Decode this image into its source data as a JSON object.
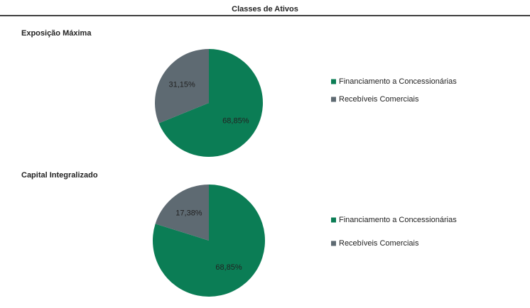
{
  "title": "Classes de Ativos",
  "chart_data": [
    {
      "type": "pie",
      "title": "Exposição Máxima",
      "categories": [
        "Financiamento a Concessionárias",
        "Recebíveis Comerciais"
      ],
      "values": [
        68.85,
        31.15
      ],
      "value_labels": [
        "68,85%",
        "31,15%"
      ],
      "colors": [
        "#0b7d55",
        "#5e6a72"
      ],
      "legend": "right"
    },
    {
      "type": "pie",
      "title": "Capital Integralizado",
      "categories": [
        "Financiamento a Concessionárias",
        "Recebíveis Comerciais"
      ],
      "values": [
        68.85,
        17.38
      ],
      "value_labels": [
        "68,85%",
        "17,38%"
      ],
      "colors": [
        "#0b7d55",
        "#5e6a72"
      ],
      "legend": "right"
    }
  ]
}
